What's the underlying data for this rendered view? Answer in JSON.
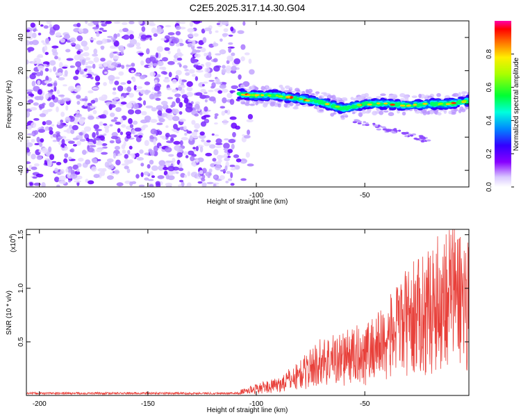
{
  "title": "C2E5.2025.317.14.30.G04",
  "chart_data": [
    {
      "type": "heatmap",
      "xlabel": "Height of straight line (km)",
      "ylabel": "Frequency (Hz)",
      "xlim": [
        -206,
        -2
      ],
      "ylim": [
        -50,
        50
      ],
      "xticks": [
        -200,
        -150,
        -100,
        -50
      ],
      "yticks": [
        -40,
        -20,
        0,
        20,
        40
      ],
      "noise_region_x": [
        -206,
        -110
      ],
      "signal_ridge": {
        "x": [
          -108,
          -100,
          -90,
          -80,
          -70,
          -60,
          -50,
          -40,
          -30,
          -20,
          -10,
          -2
        ],
        "y": [
          6,
          5,
          5,
          3,
          1,
          -3,
          0,
          0,
          -1,
          0,
          0,
          2
        ]
      },
      "colorbar": {
        "label": "Normalized spectral amplitude",
        "range": [
          0,
          1
        ],
        "ticks": [
          0.0,
          0.2,
          0.4,
          0.6,
          0.8
        ]
      }
    },
    {
      "type": "line",
      "xlabel": "Height of straight line (km)",
      "ylabel": "SNR (10 * v/v)",
      "multiplier_label": "(x10",
      "multiplier_exp": "4",
      "xlim": [
        -206,
        -2
      ],
      "ylim": [
        0,
        1.55
      ],
      "xticks": [
        -200,
        -150,
        -100,
        -50
      ],
      "yticks": [
        0.5,
        1.0,
        1.5
      ],
      "color": "#e8403a",
      "series_envelope": {
        "x": [
          -206,
          -120,
          -110,
          -100,
          -90,
          -80,
          -70,
          -60,
          -50,
          -40,
          -30,
          -20,
          -10,
          -2
        ],
        "y": [
          0.02,
          0.02,
          0.03,
          0.1,
          0.15,
          0.3,
          0.5,
          0.55,
          0.62,
          0.8,
          1.1,
          1.25,
          1.55,
          1.35
        ]
      }
    }
  ]
}
